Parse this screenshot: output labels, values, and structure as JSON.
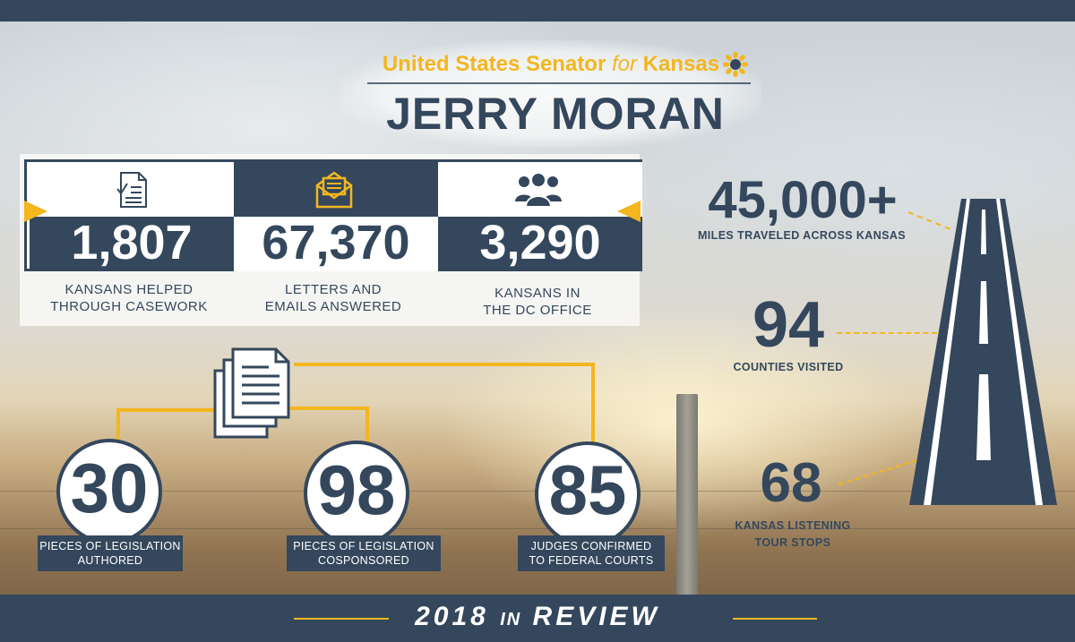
{
  "header": {
    "subtitle_pre": "United States Senator ",
    "subtitle_for": "for",
    "subtitle_post": " Kansas",
    "title": "JERRY MORAN"
  },
  "stats": [
    {
      "value": "1,807",
      "label_line1": "KANSANS HELPED",
      "label_line2": "THROUGH CASEWORK",
      "icon": "document-check-icon"
    },
    {
      "value": "67,370",
      "label_line1": "LETTERS AND",
      "label_line2": "EMAILS ANSWERED",
      "icon": "envelope-icon"
    },
    {
      "value": "3,290",
      "label_line1": "KANSANS IN",
      "label_line2": "THE DC OFFICE",
      "icon": "people-group-icon"
    }
  ],
  "legislation": [
    {
      "value": "30",
      "label_line1": "PIECES OF LEGISLATION",
      "label_line2": "AUTHORED"
    },
    {
      "value": "98",
      "label_line1": "PIECES OF LEGISLATION",
      "label_line2": "COSPONSORED"
    },
    {
      "value": "85",
      "label_line1": "JUDGES CONFIRMED",
      "label_line2": "TO FEDERAL COURTS"
    }
  ],
  "travel": [
    {
      "value": "45,000+",
      "label_line1": "MILES TRAVELED ACROSS KANSAS",
      "label_line2": ""
    },
    {
      "value": "94",
      "label_line1": "COUNTIES VISITED",
      "label_line2": ""
    },
    {
      "value": "68",
      "label_line1": "KANSAS LISTENING",
      "label_line2": "TOUR STOPS"
    }
  ],
  "footer": {
    "year": "2018",
    "in": "IN",
    "review": "REVIEW"
  },
  "colors": {
    "navy": "#34475c",
    "gold": "#f3b61f"
  }
}
